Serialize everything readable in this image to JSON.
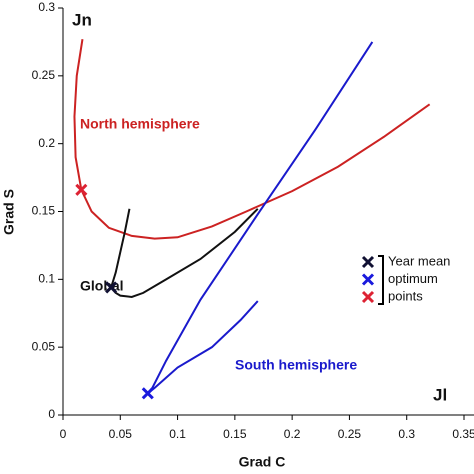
{
  "chart_data": {
    "type": "line",
    "xlabel": "Grad C",
    "ylabel": "Grad S",
    "xlim": [
      0,
      0.35
    ],
    "ylim": [
      0,
      0.3
    ],
    "xticks": [
      0,
      0.05,
      0.1,
      0.15,
      0.2,
      0.25,
      0.3,
      0.35
    ],
    "yticks": [
      0,
      0.05,
      0.1,
      0.15,
      0.2,
      0.25,
      0.3
    ],
    "series": [
      {
        "name": "North hemisphere",
        "color": "#cc2222",
        "x": [
          0.017,
          0.012,
          0.01,
          0.011,
          0.016,
          0.025,
          0.04,
          0.06,
          0.08,
          0.1,
          0.13,
          0.16,
          0.2,
          0.24,
          0.28,
          0.32
        ],
        "y": [
          0.277,
          0.25,
          0.22,
          0.19,
          0.166,
          0.15,
          0.138,
          0.132,
          0.13,
          0.131,
          0.139,
          0.15,
          0.165,
          0.183,
          0.205,
          0.229
        ]
      },
      {
        "name": "Global",
        "color": "#111111",
        "x": [
          0.058,
          0.054,
          0.05,
          0.046,
          0.042,
          0.046,
          0.05,
          0.06,
          0.07,
          0.09,
          0.12,
          0.15,
          0.17
        ],
        "y": [
          0.152,
          0.135,
          0.12,
          0.105,
          0.094,
          0.09,
          0.088,
          0.087,
          0.09,
          0.1,
          0.115,
          0.135,
          0.152
        ]
      },
      {
        "name": "South hemisphere",
        "color": "#1a1acc",
        "x": [
          0.27,
          0.22,
          0.17,
          0.12,
          0.09,
          0.078,
          0.074,
          0.08,
          0.1,
          0.13,
          0.155,
          0.17
        ],
        "y": [
          0.275,
          0.21,
          0.148,
          0.085,
          0.04,
          0.02,
          0.016,
          0.02,
          0.035,
          0.05,
          0.07,
          0.084
        ]
      }
    ],
    "optimum_points": [
      {
        "x": 0.042,
        "y": 0.094,
        "color": "#111133"
      },
      {
        "x": 0.074,
        "y": 0.016,
        "color": "#1a1add"
      },
      {
        "x": 0.016,
        "y": 0.166,
        "color": "#dd2233"
      }
    ],
    "legend_labels": [
      "Year mean",
      "optimum",
      "points"
    ],
    "annotations": [
      "Jn",
      "Jl"
    ]
  }
}
